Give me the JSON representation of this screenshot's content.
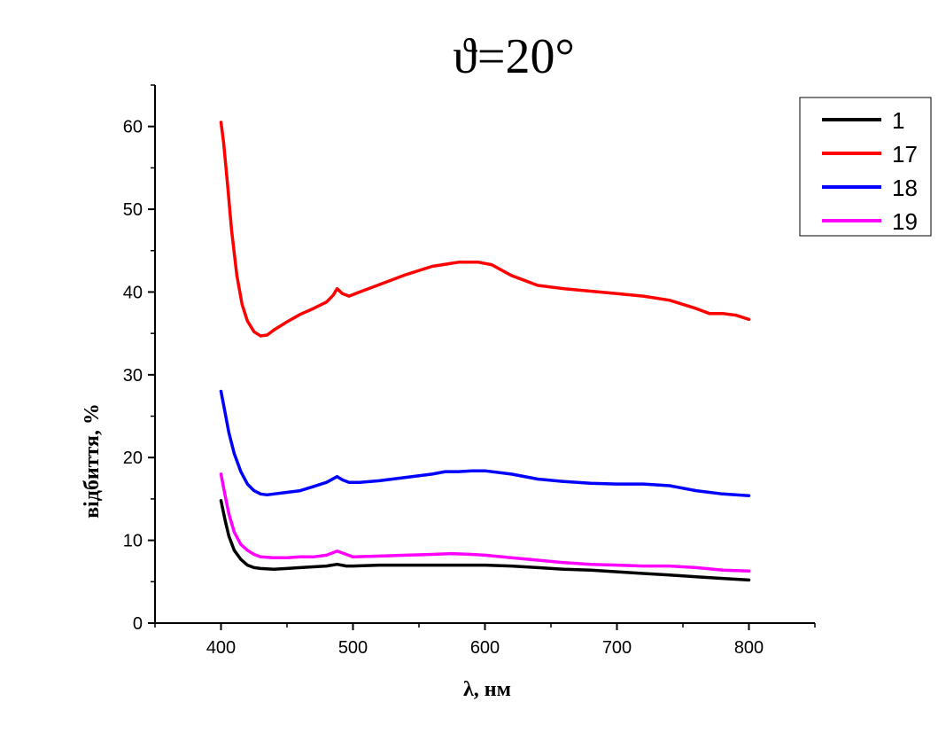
{
  "chart_data": {
    "type": "line",
    "title": "ϑ=20°",
    "xlabel": "λ, нм",
    "ylabel": "відбиття, %",
    "xlim": [
      350,
      850
    ],
    "ylim": [
      0,
      65
    ],
    "xticks": [
      400,
      500,
      600,
      700,
      800
    ],
    "yticks": [
      0,
      10,
      20,
      30,
      40,
      50,
      60
    ],
    "grid": false,
    "legend_position": "top-right",
    "series": [
      {
        "name": "1",
        "color": "#000000",
        "x": [
          400,
          403,
          406,
          410,
          415,
          420,
          425,
          430,
          440,
          450,
          460,
          470,
          480,
          488,
          495,
          500,
          520,
          540,
          560,
          580,
          600,
          620,
          640,
          660,
          680,
          700,
          720,
          740,
          760,
          780,
          800
        ],
        "y": [
          14.8,
          12.5,
          10.5,
          8.8,
          7.7,
          7.0,
          6.7,
          6.6,
          6.5,
          6.6,
          6.7,
          6.8,
          6.9,
          7.1,
          6.9,
          6.9,
          7.0,
          7.0,
          7.0,
          7.0,
          7.0,
          6.9,
          6.7,
          6.5,
          6.4,
          6.2,
          6.0,
          5.8,
          5.6,
          5.4,
          5.2
        ]
      },
      {
        "name": "17",
        "color": "#ff0000",
        "x": [
          400,
          402,
          405,
          408,
          412,
          416,
          420,
          425,
          430,
          435,
          440,
          450,
          460,
          470,
          480,
          485,
          488,
          492,
          497,
          505,
          520,
          540,
          560,
          580,
          595,
          605,
          620,
          640,
          660,
          680,
          700,
          720,
          740,
          760,
          770,
          780,
          790,
          800
        ],
        "y": [
          60.5,
          58.0,
          53.0,
          47.5,
          42.0,
          38.5,
          36.5,
          35.2,
          34.7,
          34.8,
          35.4,
          36.4,
          37.3,
          38.0,
          38.8,
          39.6,
          40.4,
          39.8,
          39.5,
          40.0,
          40.9,
          42.1,
          43.1,
          43.6,
          43.6,
          43.3,
          42.0,
          40.8,
          40.4,
          40.1,
          39.8,
          39.5,
          39.0,
          38.0,
          37.4,
          37.4,
          37.2,
          36.7
        ]
      },
      {
        "name": "18",
        "color": "#0000ff",
        "x": [
          400,
          403,
          406,
          410,
          415,
          420,
          425,
          430,
          435,
          440,
          450,
          460,
          470,
          480,
          488,
          492,
          497,
          505,
          520,
          540,
          560,
          570,
          580,
          590,
          600,
          620,
          640,
          660,
          680,
          700,
          720,
          740,
          760,
          780,
          800
        ],
        "y": [
          28.0,
          25.5,
          23.0,
          20.5,
          18.3,
          16.8,
          16.0,
          15.6,
          15.5,
          15.6,
          15.8,
          16.0,
          16.5,
          17.0,
          17.7,
          17.3,
          17.0,
          17.0,
          17.2,
          17.6,
          18.0,
          18.3,
          18.3,
          18.4,
          18.4,
          18.0,
          17.4,
          17.1,
          16.9,
          16.8,
          16.8,
          16.6,
          16.0,
          15.6,
          15.4
        ]
      },
      {
        "name": "19",
        "color": "#ff00ff",
        "x": [
          400,
          403,
          406,
          410,
          415,
          420,
          425,
          430,
          440,
          450,
          460,
          470,
          480,
          488,
          495,
          500,
          520,
          540,
          560,
          575,
          590,
          600,
          620,
          640,
          660,
          680,
          700,
          720,
          740,
          760,
          780,
          800
        ],
        "y": [
          18.0,
          15.5,
          13.2,
          11.0,
          9.5,
          8.8,
          8.3,
          8.0,
          7.9,
          7.9,
          8.0,
          8.0,
          8.2,
          8.7,
          8.3,
          8.0,
          8.1,
          8.2,
          8.3,
          8.4,
          8.3,
          8.2,
          7.9,
          7.6,
          7.3,
          7.1,
          7.0,
          6.9,
          6.9,
          6.7,
          6.4,
          6.3
        ]
      }
    ]
  }
}
